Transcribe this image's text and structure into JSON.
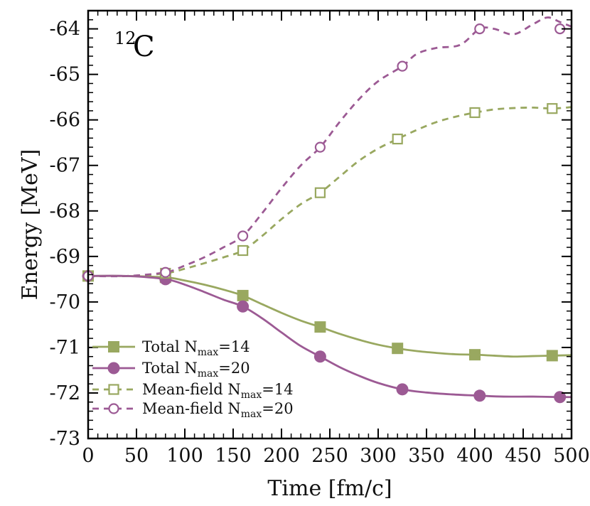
{
  "chart_data": {
    "type": "line",
    "title": "",
    "annotation": {
      "mass_number": "12",
      "symbol": "C"
    },
    "xlabel": "Time [fm/c]",
    "ylabel": "Energy [MeV]",
    "xlim": [
      0,
      500
    ],
    "ylim": [
      -73,
      -63.6
    ],
    "xticks": [
      "0",
      "50",
      "100",
      "150",
      "200",
      "250",
      "300",
      "350",
      "400",
      "450",
      "500"
    ],
    "yticks": [
      "-73",
      "-72",
      "-71",
      "-70",
      "-69",
      "-68",
      "-67",
      "-66",
      "-65",
      "-64"
    ],
    "grid": false,
    "legend_position": "bottom-left",
    "series": [
      {
        "name": "Total N",
        "name_sub": "max",
        "name_suffix": "=14",
        "color": "#99a860",
        "style": "solid",
        "marker": "filled-square",
        "x": [
          0,
          80,
          160,
          240,
          320,
          400,
          480
        ],
        "y": [
          -69.43,
          -69.46,
          -69.86,
          -70.55,
          -71.02,
          -71.16,
          -71.18
        ],
        "curve_x": [
          0,
          40,
          80,
          100,
          120,
          140,
          160,
          180,
          200,
          220,
          240,
          260,
          280,
          300,
          320,
          340,
          360,
          380,
          400,
          420,
          440,
          460,
          480,
          500
        ],
        "curve_y": [
          -69.43,
          -69.43,
          -69.46,
          -69.53,
          -69.62,
          -69.73,
          -69.86,
          -70.05,
          -70.24,
          -70.41,
          -70.55,
          -70.7,
          -70.83,
          -70.94,
          -71.02,
          -71.08,
          -71.12,
          -71.15,
          -71.16,
          -71.18,
          -71.2,
          -71.19,
          -71.18,
          -71.17
        ]
      },
      {
        "name": "Total N",
        "name_sub": "max",
        "name_suffix": "=20",
        "color": "#9c5a94",
        "style": "solid",
        "marker": "filled-circle",
        "x": [
          0,
          80,
          160,
          240,
          325,
          405,
          488
        ],
        "y": [
          -69.43,
          -69.5,
          -70.1,
          -71.2,
          -71.92,
          -72.06,
          -72.09
        ],
        "curve_x": [
          0,
          40,
          80,
          100,
          120,
          140,
          160,
          180,
          200,
          220,
          240,
          260,
          280,
          300,
          325,
          350,
          375,
          405,
          430,
          460,
          488,
          500
        ],
        "curve_y": [
          -69.43,
          -69.43,
          -69.5,
          -69.62,
          -69.78,
          -69.95,
          -70.1,
          -70.36,
          -70.67,
          -70.97,
          -71.2,
          -71.43,
          -71.62,
          -71.78,
          -71.92,
          -71.99,
          -72.03,
          -72.06,
          -72.08,
          -72.08,
          -72.09,
          -72.09
        ]
      },
      {
        "name": "Mean-field N",
        "name_sub": "max",
        "name_suffix": "=14",
        "color": "#99a860",
        "style": "dashed",
        "marker": "open-square",
        "x": [
          0,
          80,
          160,
          240,
          320,
          400,
          480
        ],
        "y": [
          -69.43,
          -69.37,
          -68.87,
          -67.6,
          -66.42,
          -65.84,
          -65.75
        ],
        "curve_x": [
          0,
          40,
          80,
          100,
          120,
          140,
          160,
          180,
          200,
          220,
          240,
          260,
          280,
          300,
          320,
          340,
          360,
          380,
          400,
          420,
          440,
          460,
          480,
          500
        ],
        "curve_y": [
          -69.43,
          -69.43,
          -69.37,
          -69.27,
          -69.15,
          -69.02,
          -68.87,
          -68.55,
          -68.18,
          -67.85,
          -67.6,
          -67.25,
          -66.9,
          -66.63,
          -66.42,
          -66.22,
          -66.05,
          -65.93,
          -65.84,
          -65.77,
          -65.74,
          -65.73,
          -65.75,
          -65.72
        ]
      },
      {
        "name": "Mean-field N",
        "name_sub": "max",
        "name_suffix": "=20",
        "color": "#9c5a94",
        "style": "dashed",
        "marker": "open-circle",
        "x": [
          0,
          80,
          160,
          240,
          325,
          405,
          488
        ],
        "y": [
          -69.43,
          -69.35,
          -68.55,
          -66.6,
          -64.82,
          -64.0,
          -64.0
        ],
        "curve_x": [
          0,
          40,
          80,
          100,
          120,
          140,
          160,
          180,
          200,
          220,
          240,
          260,
          280,
          300,
          325,
          340,
          360,
          385,
          405,
          420,
          440,
          460,
          475,
          488,
          500
        ],
        "curve_y": [
          -69.43,
          -69.43,
          -69.35,
          -69.2,
          -69.02,
          -68.8,
          -68.55,
          -68.05,
          -67.5,
          -67.0,
          -66.6,
          -66.05,
          -65.55,
          -65.15,
          -64.82,
          -64.55,
          -64.42,
          -64.35,
          -64.0,
          -64.0,
          -64.12,
          -63.9,
          -63.75,
          -63.85,
          -63.95
        ]
      }
    ]
  }
}
